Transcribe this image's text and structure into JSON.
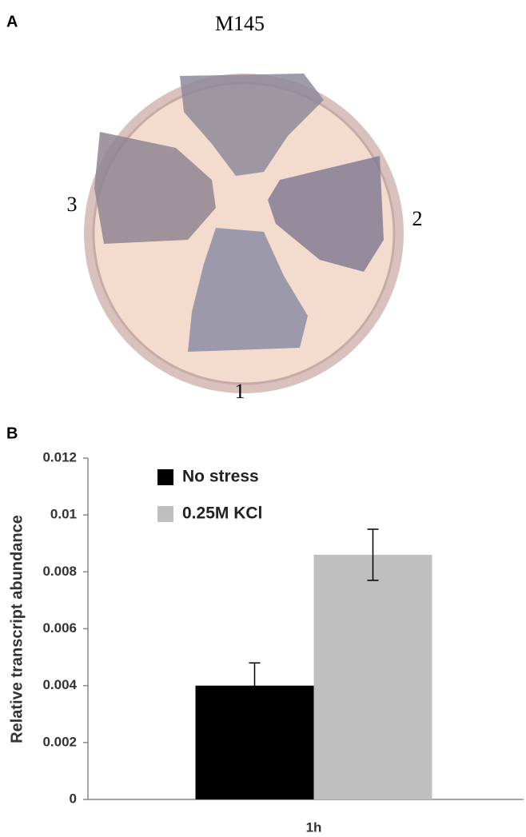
{
  "panel_a": {
    "label": "A",
    "strain": "M145",
    "sectors": [
      "1",
      "2",
      "3"
    ]
  },
  "chart_data": {
    "type": "bar",
    "panel_label": "B",
    "ylabel": "Relative transcript abundance",
    "categories": [
      "1h"
    ],
    "series": [
      {
        "name": "No stress",
        "color": "#000000",
        "values": [
          0.004
        ],
        "errors": [
          0.0008
        ]
      },
      {
        "name": "0.25M KCl",
        "color": "#bfbfbf",
        "values": [
          0.0086
        ],
        "errors": [
          0.0009
        ]
      }
    ],
    "ylim": [
      0,
      0.012
    ],
    "yticks": [
      0,
      0.002,
      0.004,
      0.006,
      0.008,
      0.01,
      0.012
    ],
    "grid": false
  }
}
